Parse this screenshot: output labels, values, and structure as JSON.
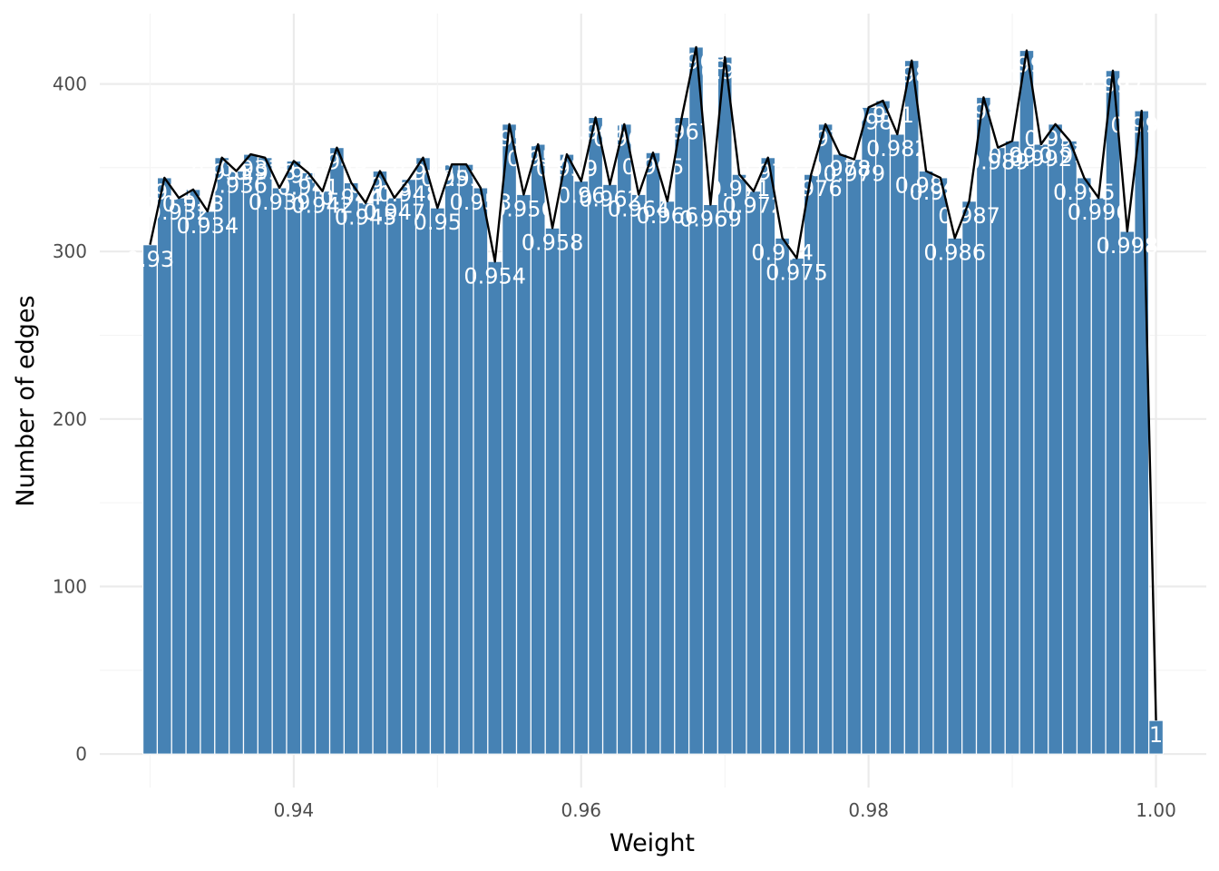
{
  "chart_data": {
    "type": "bar",
    "xlabel": "Weight",
    "ylabel": "Number of edges",
    "xlim": [
      0.9265,
      1.0035
    ],
    "ylim": [
      -20,
      442
    ],
    "x_ticks": [
      0.94,
      0.96,
      0.98,
      1.0
    ],
    "x_tick_labels": [
      "0.94",
      "0.96",
      "0.98",
      "1.00"
    ],
    "y_ticks": [
      0,
      100,
      200,
      300,
      400
    ],
    "y_tick_labels": [
      "0",
      "100",
      "200",
      "300",
      "400"
    ],
    "grid": true,
    "legend": "none",
    "bar_color": "#4682b4",
    "line_color": "#000000",
    "bars": [
      {
        "x": 0.93,
        "y": 304,
        "label": "0.93"
      },
      {
        "x": 0.931,
        "y": 344,
        "label": "0.931"
      },
      {
        "x": 0.932,
        "y": 332,
        "label": "0.932"
      },
      {
        "x": 0.933,
        "y": 337,
        "label": "0.933"
      },
      {
        "x": 0.934,
        "y": 324,
        "label": "0.934"
      },
      {
        "x": 0.935,
        "y": 356,
        "label": "0.935"
      },
      {
        "x": 0.936,
        "y": 348,
        "label": "0.936"
      },
      {
        "x": 0.937,
        "y": 358,
        "label": "0.937"
      },
      {
        "x": 0.938,
        "y": 356,
        "label": "0.938"
      },
      {
        "x": 0.939,
        "y": 338,
        "label": "0.939"
      },
      {
        "x": 0.94,
        "y": 354,
        "label": "0.94"
      },
      {
        "x": 0.941,
        "y": 347,
        "label": "0.941"
      },
      {
        "x": 0.942,
        "y": 336,
        "label": "0.942"
      },
      {
        "x": 0.943,
        "y": 362,
        "label": "0.943"
      },
      {
        "x": 0.944,
        "y": 341,
        "label": "0.944"
      },
      {
        "x": 0.945,
        "y": 329,
        "label": "0.945"
      },
      {
        "x": 0.946,
        "y": 348,
        "label": "0.946"
      },
      {
        "x": 0.947,
        "y": 332,
        "label": "0.947"
      },
      {
        "x": 0.948,
        "y": 343,
        "label": "0.948"
      },
      {
        "x": 0.949,
        "y": 356,
        "label": "0.949"
      },
      {
        "x": 0.95,
        "y": 326,
        "label": "0.95"
      },
      {
        "x": 0.951,
        "y": 352,
        "label": "0.951"
      },
      {
        "x": 0.952,
        "y": 352,
        "label": "0.952"
      },
      {
        "x": 0.953,
        "y": 338,
        "label": "0.953"
      },
      {
        "x": 0.954,
        "y": 294,
        "label": "0.954"
      },
      {
        "x": 0.955,
        "y": 376,
        "label": "0.955"
      },
      {
        "x": 0.956,
        "y": 334,
        "label": "0.956"
      },
      {
        "x": 0.957,
        "y": 364,
        "label": "0.957"
      },
      {
        "x": 0.958,
        "y": 314,
        "label": "0.958"
      },
      {
        "x": 0.959,
        "y": 358,
        "label": "0.959"
      },
      {
        "x": 0.96,
        "y": 342,
        "label": "0.96"
      },
      {
        "x": 0.961,
        "y": 380,
        "label": "0.961"
      },
      {
        "x": 0.962,
        "y": 340,
        "label": "0.962"
      },
      {
        "x": 0.963,
        "y": 376,
        "label": "0.963"
      },
      {
        "x": 0.964,
        "y": 334,
        "label": "0.964"
      },
      {
        "x": 0.965,
        "y": 359,
        "label": "0.965"
      },
      {
        "x": 0.966,
        "y": 330,
        "label": "0.966"
      },
      {
        "x": 0.967,
        "y": 380,
        "label": "0.967"
      },
      {
        "x": 0.968,
        "y": 422,
        "label": "0.968"
      },
      {
        "x": 0.969,
        "y": 328,
        "label": "0.969"
      },
      {
        "x": 0.97,
        "y": 416,
        "label": "0.97"
      },
      {
        "x": 0.971,
        "y": 346,
        "label": "0.971"
      },
      {
        "x": 0.972,
        "y": 336,
        "label": "0.972"
      },
      {
        "x": 0.973,
        "y": 356,
        "label": "0.973"
      },
      {
        "x": 0.974,
        "y": 308,
        "label": "0.974"
      },
      {
        "x": 0.975,
        "y": 296,
        "label": "0.975"
      },
      {
        "x": 0.976,
        "y": 346,
        "label": "0.976"
      },
      {
        "x": 0.977,
        "y": 376,
        "label": "0.977"
      },
      {
        "x": 0.978,
        "y": 358,
        "label": "0.978"
      },
      {
        "x": 0.979,
        "y": 355,
        "label": "0.979"
      },
      {
        "x": 0.98,
        "y": 386,
        "label": "0.98"
      },
      {
        "x": 0.981,
        "y": 390,
        "label": "0.981"
      },
      {
        "x": 0.982,
        "y": 370,
        "label": "0.982"
      },
      {
        "x": 0.983,
        "y": 414,
        "label": "0.983"
      },
      {
        "x": 0.984,
        "y": 348,
        "label": "0.984"
      },
      {
        "x": 0.985,
        "y": 344,
        "label": "0.985"
      },
      {
        "x": 0.986,
        "y": 308,
        "label": "0.986"
      },
      {
        "x": 0.987,
        "y": 330,
        "label": "0.987"
      },
      {
        "x": 0.988,
        "y": 392,
        "label": "0.988"
      },
      {
        "x": 0.989,
        "y": 362,
        "label": "0.989"
      },
      {
        "x": 0.99,
        "y": 366,
        "label": "0.99"
      },
      {
        "x": 0.991,
        "y": 420,
        "label": "0.991"
      },
      {
        "x": 0.992,
        "y": 364,
        "label": "0.992"
      },
      {
        "x": 0.993,
        "y": 376,
        "label": "0.993"
      },
      {
        "x": 0.994,
        "y": 366,
        "label": "0.994"
      },
      {
        "x": 0.995,
        "y": 344,
        "label": "0.995"
      },
      {
        "x": 0.996,
        "y": 332,
        "label": "0.996"
      },
      {
        "x": 0.997,
        "y": 408,
        "label": "0.997"
      },
      {
        "x": 0.998,
        "y": 312,
        "label": "0.998"
      },
      {
        "x": 0.999,
        "y": 384,
        "label": "0.999"
      },
      {
        "x": 1.0,
        "y": 20,
        "label": "1"
      }
    ]
  }
}
